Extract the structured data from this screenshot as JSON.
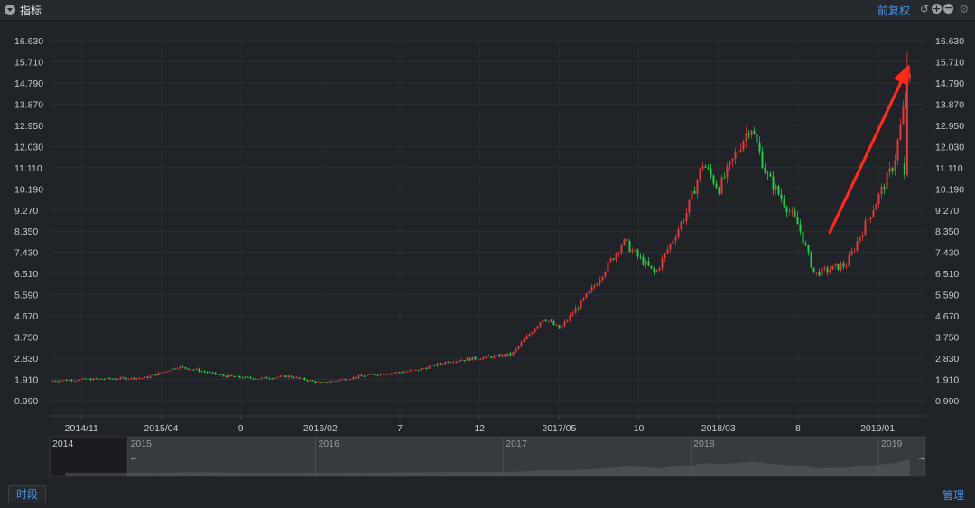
{
  "header": {
    "title": "指标",
    "adjust_label": "前复权",
    "icons": [
      "menu-icon",
      "undo-icon",
      "zoom-in-icon",
      "zoom-out-icon",
      "gear-icon"
    ]
  },
  "footer": {
    "period_label": "时段",
    "manage_label": "管理"
  },
  "colors": {
    "up": "#e03a3a",
    "down": "#1fcf4a",
    "accent": "#4a90e2",
    "arrow": "#ff2a1a"
  },
  "chart_data": {
    "type": "candlestick",
    "title": "",
    "ylim": [
      0.99,
      16.63
    ],
    "y_ticks": [
      "16.630",
      "15.710",
      "14.790",
      "13.870",
      "12.950",
      "12.030",
      "11.110",
      "10.190",
      "9.270",
      "8.350",
      "7.430",
      "6.510",
      "5.590",
      "4.670",
      "3.750",
      "2.830",
      "1.910",
      "0.990"
    ],
    "x_range": [
      "2014-09",
      "2019-04"
    ],
    "x_ticks": [
      {
        "label": "2014/11",
        "date": "2014-11"
      },
      {
        "label": "2015/04",
        "date": "2015-04"
      },
      {
        "label": "9",
        "date": "2015-09"
      },
      {
        "label": "2016/02",
        "date": "2016-02"
      },
      {
        "label": "7",
        "date": "2016-07"
      },
      {
        "label": "12",
        "date": "2016-12"
      },
      {
        "label": "2017/05",
        "date": "2017-05"
      },
      {
        "label": "10",
        "date": "2017-10"
      },
      {
        "label": "2018/03",
        "date": "2018-03"
      },
      {
        "label": "8",
        "date": "2018-08"
      },
      {
        "label": "2019/01",
        "date": "2019-01"
      }
    ],
    "price_path": [
      {
        "date": "2014-09",
        "price": 1.85
      },
      {
        "date": "2014-12",
        "price": 1.93
      },
      {
        "date": "2015-03",
        "price": 1.98
      },
      {
        "date": "2015-05",
        "price": 2.45
      },
      {
        "date": "2015-06",
        "price": 2.35
      },
      {
        "date": "2015-08",
        "price": 2.05
      },
      {
        "date": "2015-10",
        "price": 1.95
      },
      {
        "date": "2015-12",
        "price": 2.05
      },
      {
        "date": "2016-02",
        "price": 1.75
      },
      {
        "date": "2016-05",
        "price": 2.1
      },
      {
        "date": "2016-08",
        "price": 2.3
      },
      {
        "date": "2016-10",
        "price": 2.7
      },
      {
        "date": "2016-12",
        "price": 2.85
      },
      {
        "date": "2017-02",
        "price": 3.0
      },
      {
        "date": "2017-04",
        "price": 4.6
      },
      {
        "date": "2017-05",
        "price": 4.1
      },
      {
        "date": "2017-07",
        "price": 5.8
      },
      {
        "date": "2017-09",
        "price": 7.9
      },
      {
        "date": "2017-11",
        "price": 6.5
      },
      {
        "date": "2018-01",
        "price": 9.2
      },
      {
        "date": "2018-02",
        "price": 11.3
      },
      {
        "date": "2018-03",
        "price": 10.2
      },
      {
        "date": "2018-05",
        "price": 13.0
      },
      {
        "date": "2018-06",
        "price": 10.8
      },
      {
        "date": "2018-08",
        "price": 8.6
      },
      {
        "date": "2018-09",
        "price": 6.5
      },
      {
        "date": "2018-11",
        "price": 6.9
      },
      {
        "date": "2019-01",
        "price": 9.8
      },
      {
        "date": "2019-02",
        "price": 11.3
      },
      {
        "date": "2019-03",
        "price": 15.2
      }
    ],
    "arrow": {
      "from": {
        "date": "2018-10",
        "price": 8.3
      },
      "to": {
        "date": "2019-03",
        "price": 15.6
      }
    },
    "navigator": {
      "year_labels": [
        "2014",
        "2015",
        "2016",
        "2017",
        "2018",
        "2019"
      ],
      "selection": [
        "2015-01",
        "2019-04"
      ]
    }
  }
}
